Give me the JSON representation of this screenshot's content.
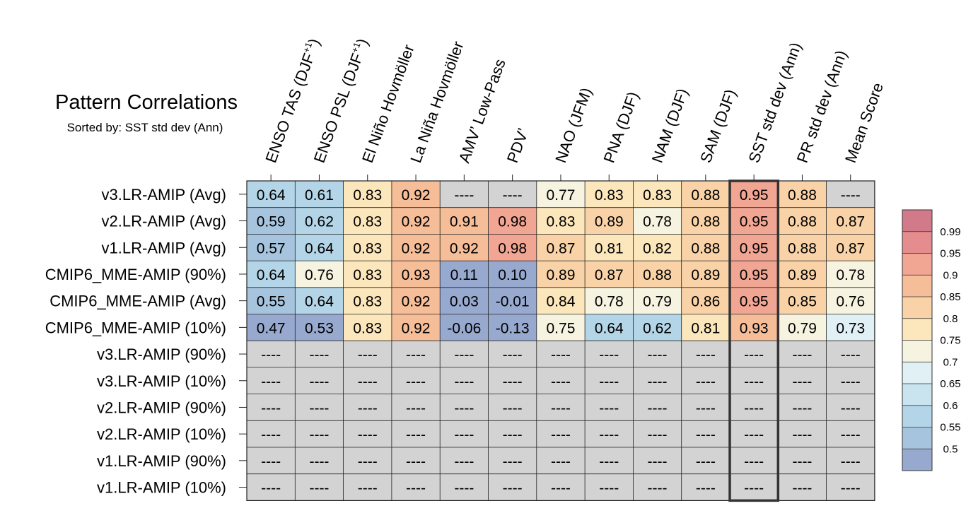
{
  "chart_data": {
    "type": "heatmap",
    "title": "Pattern Correlations",
    "subtitle": "Sorted by: SST std dev (Ann)",
    "columns": [
      {
        "label": "ENSO TAS (DJF",
        "sup": "+1",
        "close": ")"
      },
      {
        "label": "ENSO PSL (DJF",
        "sup": "+1",
        "close": ")"
      },
      {
        "label": "El Niño Hovmöller",
        "sup": "",
        "close": ""
      },
      {
        "label": "La Niña Hovmöller",
        "sup": "",
        "close": ""
      },
      {
        "label": "AMV’ Low-Pass",
        "sup": "",
        "close": ""
      },
      {
        "label": "PDV’",
        "sup": "",
        "close": ""
      },
      {
        "label": "NAO (JFM)",
        "sup": "",
        "close": ""
      },
      {
        "label": "PNA (DJF)",
        "sup": "",
        "close": ""
      },
      {
        "label": "NAM (DJF)",
        "sup": "",
        "close": ""
      },
      {
        "label": "SAM (DJF)",
        "sup": "",
        "close": ""
      },
      {
        "label": "SST std dev (Ann)",
        "sup": "",
        "close": ""
      },
      {
        "label": "PR std dev (Ann)",
        "sup": "",
        "close": ""
      },
      {
        "label": "Mean Score",
        "sup": "",
        "close": ""
      }
    ],
    "rows": [
      "v3.LR-AMIP (Avg)",
      "v2.LR-AMIP (Avg)",
      "v1.LR-AMIP (Avg)",
      "CMIP6_MME-AMIP (90%)",
      "CMIP6_MME-AMIP (Avg)",
      "CMIP6_MME-AMIP (10%)",
      "v3.LR-AMIP (90%)",
      "v3.LR-AMIP (10%)",
      "v2.LR-AMIP (90%)",
      "v2.LR-AMIP (10%)",
      "v1.LR-AMIP (90%)",
      "v1.LR-AMIP (10%)"
    ],
    "values": [
      [
        0.64,
        0.61,
        0.83,
        0.92,
        null,
        null,
        0.77,
        0.83,
        0.83,
        0.88,
        0.95,
        0.88,
        null
      ],
      [
        0.59,
        0.62,
        0.83,
        0.92,
        0.91,
        0.98,
        0.83,
        0.89,
        0.78,
        0.88,
        0.95,
        0.88,
        0.87
      ],
      [
        0.57,
        0.64,
        0.83,
        0.92,
        0.92,
        0.98,
        0.87,
        0.81,
        0.82,
        0.88,
        0.95,
        0.88,
        0.87
      ],
      [
        0.64,
        0.76,
        0.83,
        0.93,
        0.11,
        0.1,
        0.89,
        0.87,
        0.88,
        0.89,
        0.95,
        0.89,
        0.78
      ],
      [
        0.55,
        0.64,
        0.83,
        0.92,
        0.03,
        -0.01,
        0.84,
        0.78,
        0.79,
        0.86,
        0.95,
        0.85,
        0.76
      ],
      [
        0.47,
        0.53,
        0.83,
        0.92,
        -0.06,
        -0.13,
        0.75,
        0.64,
        0.62,
        0.81,
        0.93,
        0.79,
        0.73
      ],
      [
        null,
        null,
        null,
        null,
        null,
        null,
        null,
        null,
        null,
        null,
        null,
        null,
        null
      ],
      [
        null,
        null,
        null,
        null,
        null,
        null,
        null,
        null,
        null,
        null,
        null,
        null,
        null
      ],
      [
        null,
        null,
        null,
        null,
        null,
        null,
        null,
        null,
        null,
        null,
        null,
        null,
        null
      ],
      [
        null,
        null,
        null,
        null,
        null,
        null,
        null,
        null,
        null,
        null,
        null,
        null,
        null
      ],
      [
        null,
        null,
        null,
        null,
        null,
        null,
        null,
        null,
        null,
        null,
        null,
        null,
        null
      ],
      [
        null,
        null,
        null,
        null,
        null,
        null,
        null,
        null,
        null,
        null,
        null,
        null,
        null
      ]
    ],
    "display_values": [
      [
        "0.64",
        "0.61",
        "0.83",
        "0.92",
        "----",
        "----",
        "0.77",
        "0.83",
        "0.83",
        "0.88",
        "0.95",
        "0.88",
        "----"
      ],
      [
        "0.59",
        "0.62",
        "0.83",
        "0.92",
        "0.91",
        "0.98",
        "0.83",
        "0.89",
        "0.78",
        "0.88",
        "0.95",
        "0.88",
        "0.87"
      ],
      [
        "0.57",
        "0.64",
        "0.83",
        "0.92",
        "0.92",
        "0.98",
        "0.87",
        "0.81",
        "0.82",
        "0.88",
        "0.95",
        "0.88",
        "0.87"
      ],
      [
        "0.64",
        "0.76",
        "0.83",
        "0.93",
        "0.11",
        "0.10",
        "0.89",
        "0.87",
        "0.88",
        "0.89",
        "0.95",
        "0.89",
        "0.78"
      ],
      [
        "0.55",
        "0.64",
        "0.83",
        "0.92",
        "0.03",
        "-0.01",
        "0.84",
        "0.78",
        "0.79",
        "0.86",
        "0.95",
        "0.85",
        "0.76"
      ],
      [
        "0.47",
        "0.53",
        "0.83",
        "0.92",
        "-0.06",
        "-0.13",
        "0.75",
        "0.64",
        "0.62",
        "0.81",
        "0.93",
        "0.79",
        "0.73"
      ],
      [
        "----",
        "----",
        "----",
        "----",
        "----",
        "----",
        "----",
        "----",
        "----",
        "----",
        "----",
        "----",
        "----"
      ],
      [
        "----",
        "----",
        "----",
        "----",
        "----",
        "----",
        "----",
        "----",
        "----",
        "----",
        "----",
        "----",
        "----"
      ],
      [
        "----",
        "----",
        "----",
        "----",
        "----",
        "----",
        "----",
        "----",
        "----",
        "----",
        "----",
        "----",
        "----"
      ],
      [
        "----",
        "----",
        "----",
        "----",
        "----",
        "----",
        "----",
        "----",
        "----",
        "----",
        "----",
        "----",
        "----"
      ],
      [
        "----",
        "----",
        "----",
        "----",
        "----",
        "----",
        "----",
        "----",
        "----",
        "----",
        "----",
        "----",
        "----"
      ],
      [
        "----",
        "----",
        "----",
        "----",
        "----",
        "----",
        "----",
        "----",
        "----",
        "----",
        "----",
        "----",
        "----"
      ]
    ],
    "highlight_column": "SST std dev (Ann)",
    "missing_color": "#d3d3d3",
    "colorbar": {
      "ticks": [
        "0.99",
        "0.95",
        "0.9",
        "0.85",
        "0.8",
        "0.75",
        "0.7",
        "0.65",
        "0.6",
        "0.55",
        "0.5"
      ],
      "colors_top_to_bottom": [
        "#d27a89",
        "#e58c8f",
        "#f1a593",
        "#f5bd98",
        "#f9d3a7",
        "#fce6bb",
        "#f7f3e1",
        "#e0f0f5",
        "#c9e4ef",
        "#b3d5e7",
        "#a7c4de",
        "#98a9d0"
      ]
    }
  }
}
